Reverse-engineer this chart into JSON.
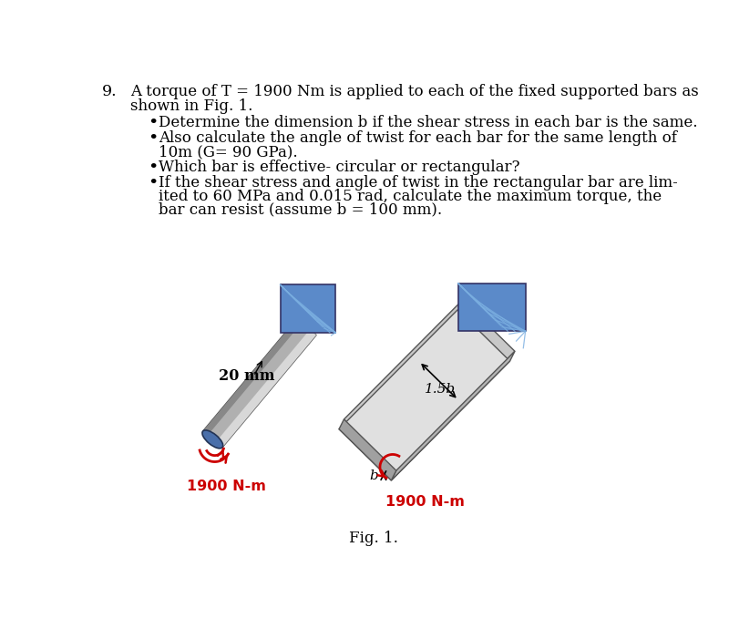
{
  "bg_color": "#ffffff",
  "text_color": "#000000",
  "red_color": "#cc0000",
  "blue_wall_color": "#5b8ac9",
  "gray_light": "#c8c8c8",
  "gray_mid": "#b0b0b0",
  "gray_dark": "#909090",
  "blue_circle": "#4a6faa",
  "fig_caption": "Fig. 1.",
  "label_20mm": "20 mm",
  "label_1_5b": "1.5b",
  "label_b": "b",
  "label_torque": "1900 N-m",
  "line1": "A torque of T = 1900 Nm is applied to each of the fixed supported bars as",
  "line2": "shown in Fig. 1.",
  "b1": "Determine the dimension b if the shear stress in each bar is the same.",
  "b2a": "Also calculate the angle of twist for each bar for the same length of",
  "b2b": "10m (G= 90 GPa).",
  "b3": "Which bar is effective- circular or rectangular?",
  "b4a": "If the shear stress and angle of twist in the rectangular bar are lim-",
  "b4b": "ited to 60 MPa and 0.015 rad, calculate the maximum torque, the",
  "b4c": "bar can resist (assume b = 100 mm)."
}
